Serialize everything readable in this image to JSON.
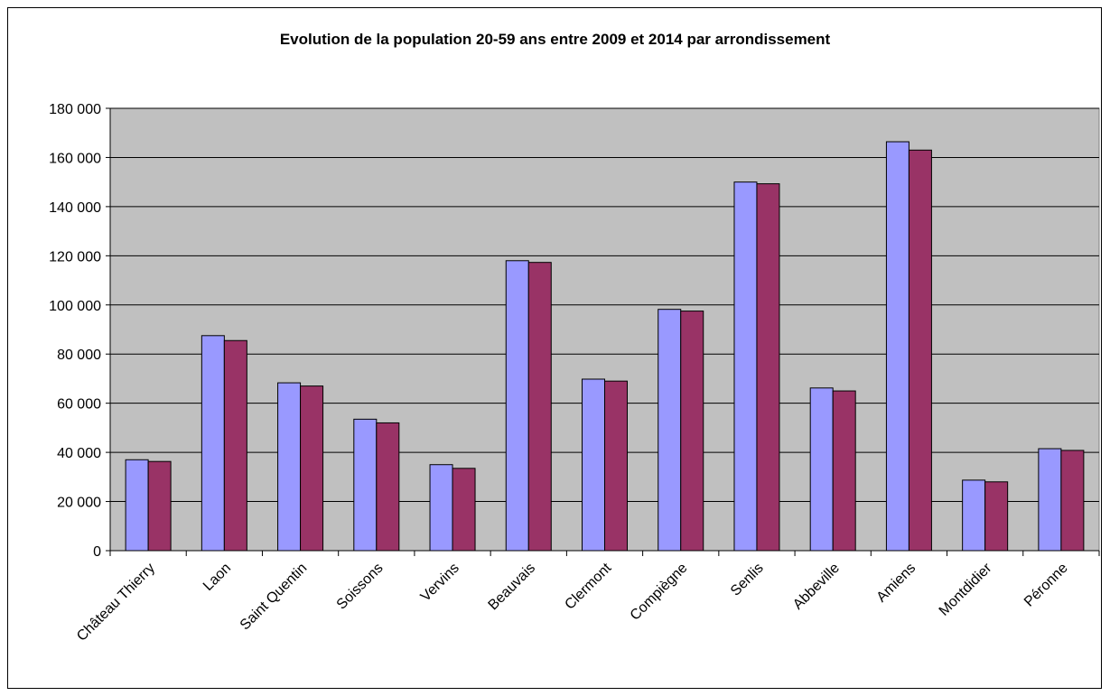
{
  "chart_data": {
    "type": "bar",
    "title": "Evolution de la population 20-59 ans entre 2009 et 2014 par arrondissement",
    "xlabel": "",
    "ylabel": "",
    "ylim": [
      0,
      180000
    ],
    "ytick_step": 20000,
    "yticks": [
      "0",
      "20 000",
      "40 000",
      "60 000",
      "80 000",
      "100 000",
      "120 000",
      "140 000",
      "160 000",
      "180 000"
    ],
    "grid": true,
    "legend": "none",
    "categories": [
      "Château Thierry",
      "Laon",
      "Saint Quentin",
      "Soissons",
      "Vervins",
      "Beauvais",
      "Clermont",
      "Compiègne",
      "Senlis",
      "Abbeville",
      "Amiens",
      "Montdidier",
      "Péronne"
    ],
    "series": [
      {
        "color": "#9999ff",
        "values": [
          37000,
          87500,
          68300,
          53500,
          35000,
          118000,
          69800,
          98200,
          150000,
          66200,
          166400,
          28700,
          41500
        ]
      },
      {
        "color": "#993366",
        "values": [
          36300,
          85500,
          67000,
          52000,
          33500,
          117300,
          69000,
          97500,
          149300,
          65000,
          163000,
          28000,
          40800
        ]
      }
    ],
    "plot_background": "#c0c0c0"
  }
}
